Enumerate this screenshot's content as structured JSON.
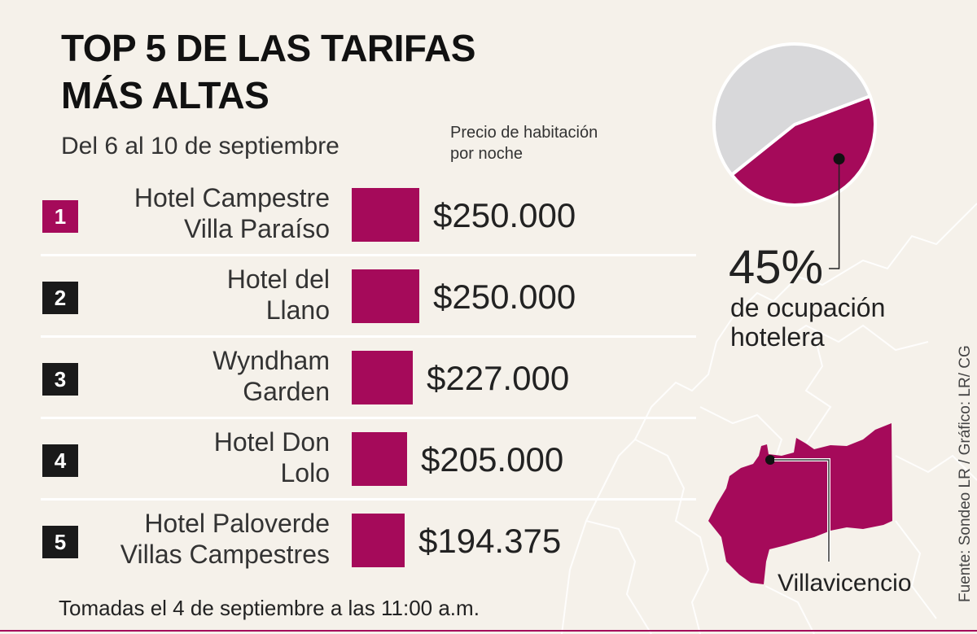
{
  "header": {
    "title_line1": "TOP 5 DE LAS TARIFAS",
    "title_line2": "MÁS ALTAS",
    "subtitle": "Del 6 al 10 de septiembre"
  },
  "unit_label_line1": "Precio de habitación",
  "unit_label_line2": "por noche",
  "chart_data": [
    {
      "type": "bar",
      "orientation": "horizontal",
      "categories": [
        "Hotel Campestre Villa Paraíso",
        "Hotel del Llano",
        "Wyndham Garden",
        "Hotel Don Lolo",
        "Hotel Paloverde Villas Campestres"
      ],
      "category_lines": [
        [
          "Hotel Campestre",
          "Villa Paraíso"
        ],
        [
          "Hotel del",
          "Llano"
        ],
        [
          "Wyndham",
          "Garden"
        ],
        [
          "Hotel Don",
          "Lolo"
        ],
        [
          "Hotel Paloverde",
          "Villas Campestres"
        ]
      ],
      "ranks": [
        "1",
        "2",
        "3",
        "4",
        "5"
      ],
      "values": [
        250000,
        250000,
        227000,
        205000,
        194375
      ],
      "value_labels": [
        "$250.000",
        "$250.000",
        "$227.000",
        "$205.000",
        "$194.375"
      ],
      "bar_color": "#a50a5a",
      "rank_colors": [
        "#a50a5a",
        "#1a1a1a",
        "#1a1a1a",
        "#1a1a1a",
        "#1a1a1a"
      ]
    },
    {
      "type": "pie",
      "labels": [
        "de ocupación hotelera",
        ""
      ],
      "values": [
        45,
        55
      ],
      "colors": [
        "#a50a5a",
        "#d8d8da"
      ],
      "value_label": "45%",
      "label_lines": [
        "de ocupación",
        "hotelera"
      ]
    }
  ],
  "footnote": "Tomadas el 4 de septiembre a las 11:00 a.m.",
  "map": {
    "highlight_label": "Villavicencio",
    "highlight_color": "#a50a5a"
  },
  "source": "Fuente: Sondeo LR / Gráfico: LR/ CG"
}
